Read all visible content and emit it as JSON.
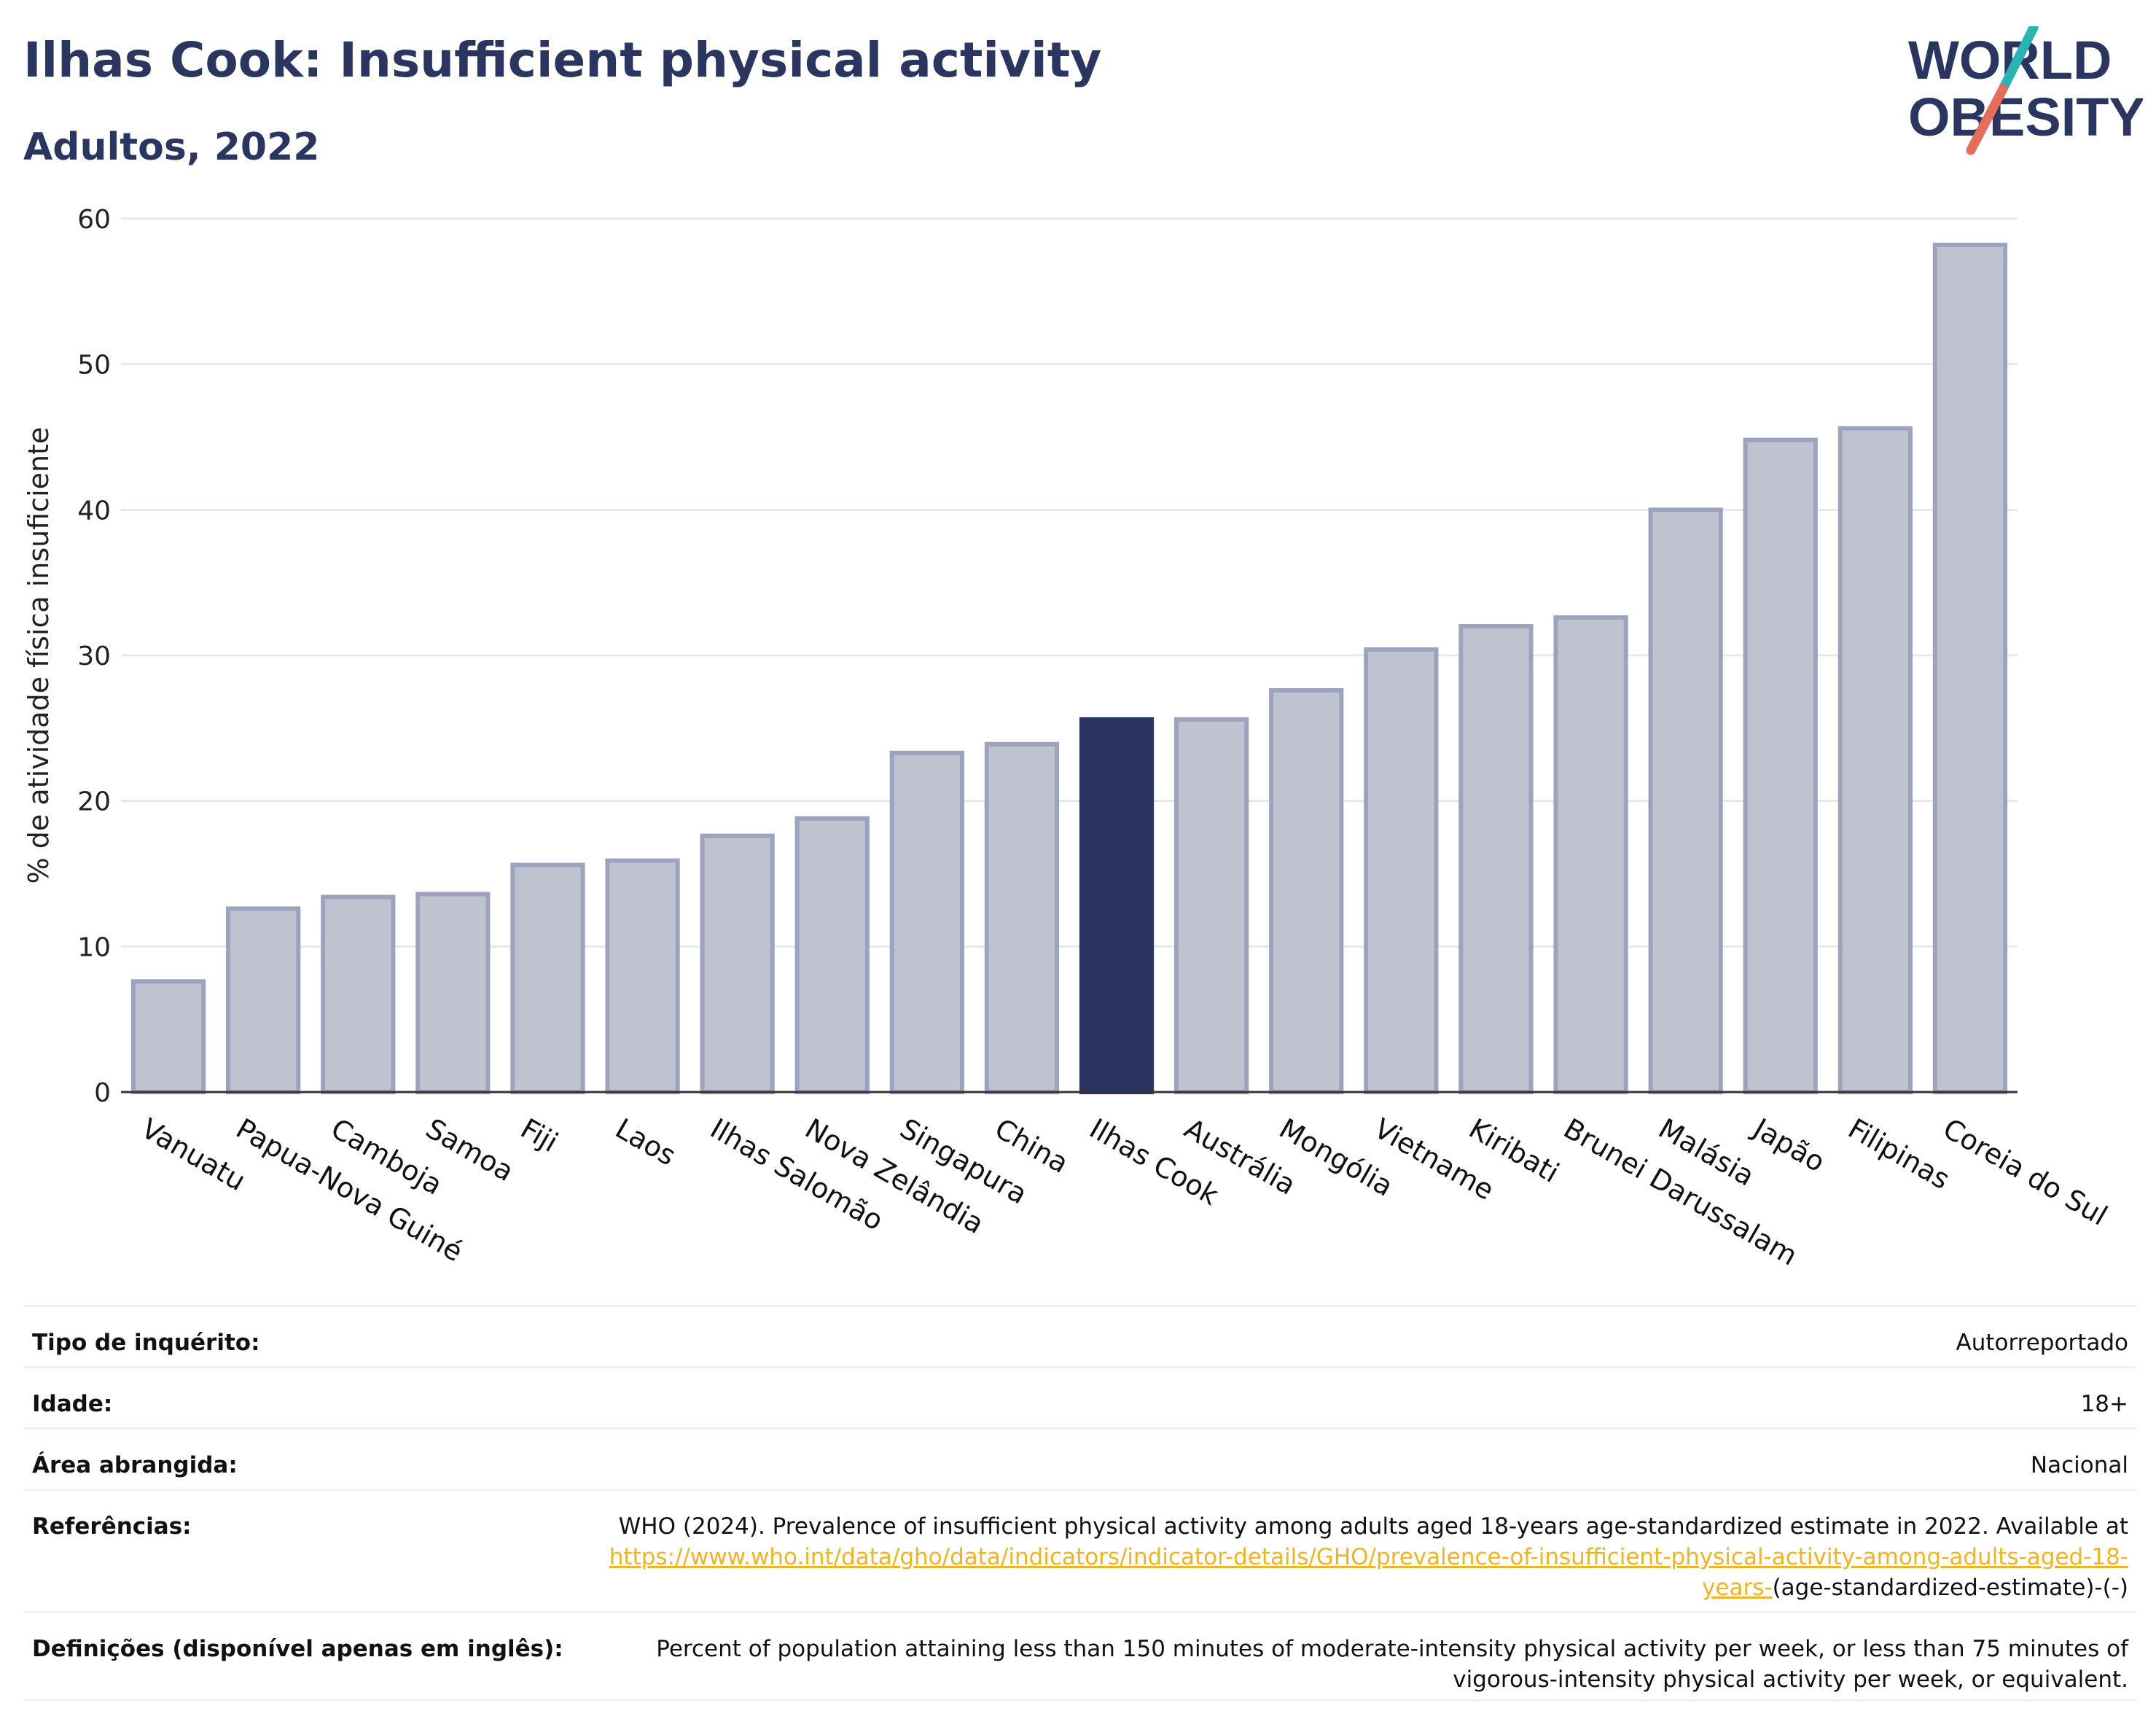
{
  "header": {
    "title": "Ilhas Cook: Insufficient physical activity",
    "subtitle": "Adultos, 2022"
  },
  "logo": {
    "line1": "WORLD",
    "line2": "OBESITY"
  },
  "colors": {
    "highlight": "#2b3660",
    "bar_fill": "#bfc2cf",
    "bar_stroke": "#9ea3bd",
    "accent_teal": "#2bb3b4",
    "accent_coral": "#e46e5b",
    "link": "#f0b323"
  },
  "chart_data": {
    "type": "bar",
    "ylabel": "% de atividade física insuficiente",
    "ylim": [
      0,
      60
    ],
    "yticks": [
      0,
      10,
      20,
      30,
      40,
      50,
      60
    ],
    "grid": true,
    "highlight": "Ilhas Cook",
    "categories": [
      "Vanuatu",
      "Papua-Nova Guiné",
      "Camboja",
      "Samoa",
      "Fiji",
      "Laos",
      "Ilhas Salomão",
      "Nova Zelândia",
      "Singapura",
      "China",
      "Ilhas Cook",
      "Austrália",
      "Mongólia",
      "Vietname",
      "Kiribati",
      "Brunei Darussalam",
      "Malásia",
      "Japão",
      "Filipinas",
      "Coreia do Sul"
    ],
    "values": [
      7.6,
      12.6,
      13.4,
      13.6,
      15.6,
      15.9,
      17.6,
      18.8,
      23.3,
      23.9,
      25.6,
      25.6,
      27.6,
      30.4,
      32.0,
      32.6,
      40.0,
      44.8,
      45.6,
      58.2
    ]
  },
  "details": {
    "survey_label": "Tipo de inquérito:",
    "survey_value": "Autorreportado",
    "age_label": "Idade:",
    "age_value": "18+",
    "area_label": "Área abrangida:",
    "area_value": "Nacional",
    "ref_label": "Referências:",
    "ref_text": "WHO (2024). Prevalence of insufficient physical activity among adults aged 18-years age-standardized estimate in 2022. Available at",
    "ref_link": "https://www.who.int/data/gho/data/indicators/indicator-details/GHO/prevalence-of-insufficient-physical-activity-among-adults-aged-18-years-",
    "ref_tail": "(age-standardized-estimate)-(-)",
    "def_label": "Definições (disponível apenas em inglês):",
    "def_text": "Percent of population attaining less than 150 minutes of moderate-intensity physical activity per week, or less than 75 minutes of vigorous-intensity physical activity per week, or equivalent."
  }
}
